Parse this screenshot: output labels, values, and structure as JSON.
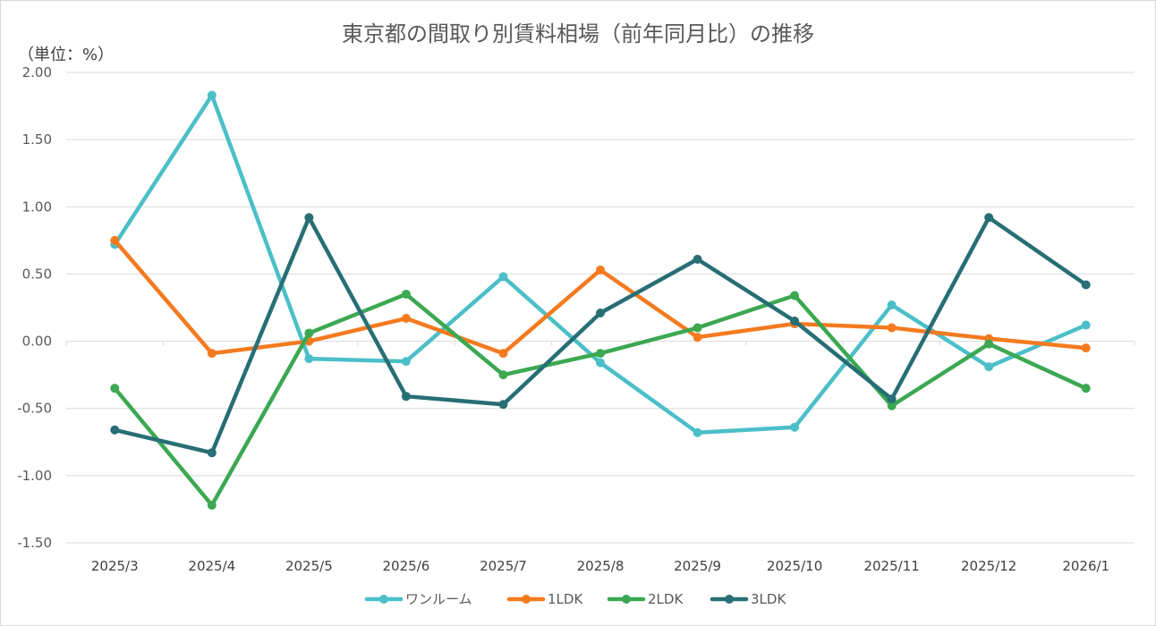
{
  "chart_data": {
    "type": "line",
    "title": "東京都の間取り別賃料相場（前年同月比）の推移",
    "unit_label": "（単位：%）",
    "categories": [
      "2025/3",
      "2025/4",
      "2025/5",
      "2025/6",
      "2025/7",
      "2025/8",
      "2025/9",
      "2025/10",
      "2025/11",
      "2025/12",
      "2026/1"
    ],
    "ylim": [
      -1.5,
      2.0
    ],
    "ytick_labels": [
      "2.00",
      "1.50",
      "1.00",
      "0.50",
      "0.00",
      "-0.50",
      "-1.00",
      "-1.50"
    ],
    "grid": true,
    "series": [
      {
        "name": "ワンルーム",
        "color": "#4bbfc8",
        "values": [
          0.72,
          1.83,
          -0.13,
          -0.15,
          0.48,
          -0.16,
          -0.68,
          -0.64,
          0.27,
          -0.19,
          0.12
        ]
      },
      {
        "name": "1LDK",
        "color": "#f47a1f",
        "values": [
          0.75,
          -0.09,
          0.0,
          0.17,
          -0.09,
          0.53,
          0.03,
          0.13,
          0.1,
          0.02,
          -0.05
        ]
      },
      {
        "name": "2LDK",
        "color": "#3ca852",
        "values": [
          -0.35,
          -1.22,
          0.06,
          0.35,
          -0.25,
          -0.09,
          0.1,
          0.34,
          -0.48,
          -0.02,
          -0.35
        ]
      },
      {
        "name": "3LDK",
        "color": "#276e75",
        "values": [
          -0.66,
          -0.83,
          0.92,
          -0.41,
          -0.47,
          0.21,
          0.61,
          0.15,
          -0.43,
          0.92,
          0.42
        ]
      }
    ]
  }
}
